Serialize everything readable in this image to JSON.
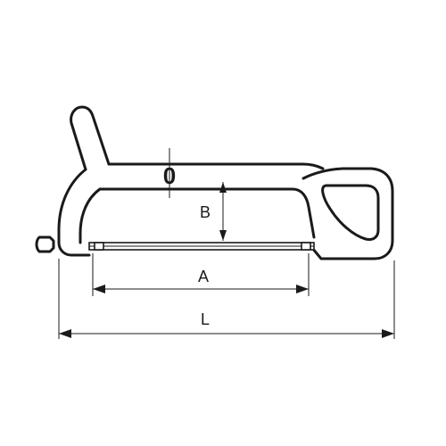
{
  "drawing": {
    "subject": "hacksaw",
    "line_color": "#1a1a1a",
    "background_color": "#ffffff"
  },
  "labels": {
    "tension_marker": "0",
    "blade_depth": "B",
    "blade_length": "A",
    "overall_length": "L"
  }
}
